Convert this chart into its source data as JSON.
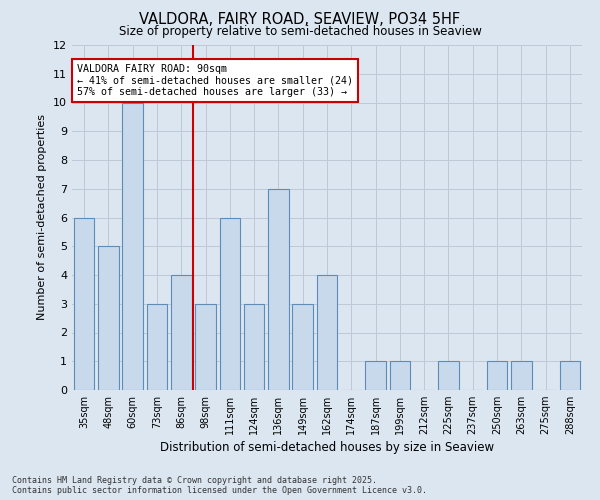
{
  "title_line1": "VALDORA, FAIRY ROAD, SEAVIEW, PO34 5HF",
  "title_line2": "Size of property relative to semi-detached houses in Seaview",
  "xlabel": "Distribution of semi-detached houses by size in Seaview",
  "ylabel": "Number of semi-detached properties",
  "categories": [
    "35sqm",
    "48sqm",
    "60sqm",
    "73sqm",
    "86sqm",
    "98sqm",
    "111sqm",
    "124sqm",
    "136sqm",
    "149sqm",
    "162sqm",
    "174sqm",
    "187sqm",
    "199sqm",
    "212sqm",
    "225sqm",
    "237sqm",
    "250sqm",
    "263sqm",
    "275sqm",
    "288sqm"
  ],
  "values": [
    6,
    5,
    10,
    3,
    4,
    3,
    6,
    3,
    7,
    3,
    4,
    0,
    1,
    1,
    0,
    1,
    0,
    1,
    1,
    0,
    1
  ],
  "bar_color": "#c9d9ec",
  "bar_edge_color": "#5b8db8",
  "grid_color": "#c0c8d8",
  "background_color": "#dce6f1",
  "annotation_box_facecolor": "#ffffff",
  "annotation_border_color": "#cc0000",
  "vline_color": "#cc0000",
  "vline_x": 4.5,
  "annotation_text_line1": "VALDORA FAIRY ROAD: 90sqm",
  "annotation_text_line2": "← 41% of semi-detached houses are smaller (24)",
  "annotation_text_line3": "57% of semi-detached houses are larger (33) →",
  "ylim": [
    0,
    12
  ],
  "yticks": [
    0,
    1,
    2,
    3,
    4,
    5,
    6,
    7,
    8,
    9,
    10,
    11,
    12
  ],
  "footnote_line1": "Contains HM Land Registry data © Crown copyright and database right 2025.",
  "footnote_line2": "Contains public sector information licensed under the Open Government Licence v3.0."
}
